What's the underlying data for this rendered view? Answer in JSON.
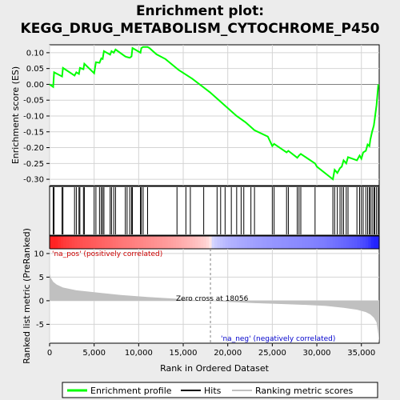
{
  "chart_data": [
    {
      "type": "line",
      "title": "Enrichment plot:",
      "subtitle": "KEGG_DRUG_METABOLISM_CYTOCHROME_P450",
      "ylabel": "Enrichment score (ES)",
      "ylim": [
        -0.32,
        0.125
      ],
      "xlim": [
        0,
        37000
      ],
      "yticks": [
        0.1,
        0.05,
        0.0,
        -0.05,
        -0.1,
        -0.15,
        -0.2,
        -0.25,
        -0.3
      ],
      "ytick_labels": [
        "0.10",
        "0.05",
        "0.00",
        "-0.05",
        "-0.10",
        "-0.15",
        "-0.20",
        "-0.25",
        "-0.30"
      ],
      "grid": true,
      "series": [
        {
          "name": "Enrichment profile",
          "color": "#00ff00",
          "points": [
            [
              0,
              0.0
            ],
            [
              400,
              -0.008
            ],
            [
              500,
              0.038
            ],
            [
              1400,
              0.025
            ],
            [
              1500,
              0.052
            ],
            [
              2800,
              0.028
            ],
            [
              3000,
              0.038
            ],
            [
              3300,
              0.033
            ],
            [
              3400,
              0.052
            ],
            [
              3800,
              0.048
            ],
            [
              3900,
              0.065
            ],
            [
              5000,
              0.035
            ],
            [
              5200,
              0.07
            ],
            [
              5600,
              0.068
            ],
            [
              5800,
              0.082
            ],
            [
              5950,
              0.08
            ],
            [
              6100,
              0.105
            ],
            [
              6800,
              0.094
            ],
            [
              6950,
              0.105
            ],
            [
              7200,
              0.1
            ],
            [
              7400,
              0.11
            ],
            [
              8500,
              0.088
            ],
            [
              8700,
              0.086
            ],
            [
              9000,
              0.084
            ],
            [
              9200,
              0.088
            ],
            [
              9300,
              0.115
            ],
            [
              10200,
              0.1
            ],
            [
              10300,
              0.115
            ],
            [
              10500,
              0.118
            ],
            [
              11000,
              0.118
            ],
            [
              11200,
              0.115
            ],
            [
              12000,
              0.095
            ],
            [
              13000,
              0.08
            ],
            [
              14500,
              0.045
            ],
            [
              16000,
              0.018
            ],
            [
              18000,
              -0.025
            ],
            [
              20000,
              -0.075
            ],
            [
              21000,
              -0.1
            ],
            [
              22000,
              -0.12
            ],
            [
              23000,
              -0.145
            ],
            [
              24500,
              -0.165
            ],
            [
              25000,
              -0.195
            ],
            [
              25200,
              -0.188
            ],
            [
              26600,
              -0.215
            ],
            [
              26800,
              -0.21
            ],
            [
              27800,
              -0.232
            ],
            [
              28000,
              -0.225
            ],
            [
              28200,
              -0.22
            ],
            [
              29800,
              -0.25
            ],
            [
              30000,
              -0.26
            ],
            [
              31800,
              -0.3
            ],
            [
              32000,
              -0.27
            ],
            [
              32300,
              -0.28
            ],
            [
              32600,
              -0.265
            ],
            [
              32800,
              -0.26
            ],
            [
              33000,
              -0.24
            ],
            [
              33300,
              -0.25
            ],
            [
              33500,
              -0.23
            ],
            [
              34500,
              -0.24
            ],
            [
              34800,
              -0.225
            ],
            [
              35000,
              -0.235
            ],
            [
              35200,
              -0.215
            ],
            [
              35500,
              -0.21
            ],
            [
              35700,
              -0.19
            ],
            [
              35900,
              -0.195
            ],
            [
              36000,
              -0.175
            ],
            [
              36200,
              -0.15
            ],
            [
              36400,
              -0.13
            ],
            [
              36500,
              -0.11
            ],
            [
              36700,
              -0.065
            ],
            [
              36900,
              0.0
            ]
          ]
        }
      ]
    },
    {
      "type": "barcode",
      "name": "Hits",
      "xlim": [
        0,
        37000
      ],
      "hits": [
        400,
        500,
        1400,
        1500,
        2800,
        3000,
        3300,
        3400,
        3800,
        3900,
        5000,
        5200,
        5600,
        5800,
        5950,
        6100,
        6800,
        6950,
        7200,
        7400,
        8500,
        8700,
        9000,
        9200,
        9300,
        10200,
        10300,
        10500,
        11000,
        14300,
        15300,
        15800,
        17300,
        18800,
        19200,
        19700,
        20400,
        21000,
        21500,
        21800,
        22600,
        23000,
        25000,
        25200,
        26600,
        26800,
        27800,
        28000,
        28200,
        29800,
        31800,
        32000,
        32300,
        32600,
        32800,
        33000,
        33300,
        33500,
        34500,
        34800,
        35000,
        35200,
        35500,
        35700,
        35900,
        36000,
        36200,
        36400,
        36500,
        36700,
        36900
      ]
    },
    {
      "type": "area",
      "name": "Ranking metric scores",
      "xlabel": "Rank in Ordered Dataset",
      "ylabel": "Ranked list metric (PreRanked)",
      "xlim": [
        0,
        37000
      ],
      "ylim": [
        -9,
        11
      ],
      "yticks": [
        10,
        5,
        0,
        -5
      ],
      "xticks": [
        0,
        5000,
        10000,
        15000,
        20000,
        25000,
        30000,
        35000
      ],
      "xtick_labels": [
        "0",
        "5,000",
        "10,000",
        "15,000",
        "20,000",
        "25,000",
        "30,000",
        "35,000"
      ],
      "color": "#c0c0c0",
      "points": [
        [
          0,
          5.8
        ],
        [
          150,
          4.8
        ],
        [
          400,
          4.0
        ],
        [
          800,
          3.4
        ],
        [
          1500,
          2.8
        ],
        [
          3000,
          2.2
        ],
        [
          5000,
          1.8
        ],
        [
          8000,
          1.2
        ],
        [
          11000,
          0.8
        ],
        [
          14000,
          0.45
        ],
        [
          16000,
          0.2
        ],
        [
          18056,
          0.0
        ],
        [
          20000,
          -0.25
        ],
        [
          23000,
          -0.5
        ],
        [
          26000,
          -0.7
        ],
        [
          29000,
          -0.9
        ],
        [
          31000,
          -1.1
        ],
        [
          33000,
          -1.5
        ],
        [
          34500,
          -1.9
        ],
        [
          35500,
          -2.4
        ],
        [
          36000,
          -2.9
        ],
        [
          36400,
          -3.6
        ],
        [
          36700,
          -4.6
        ],
        [
          36900,
          -7.0
        ],
        [
          37000,
          -8.9
        ]
      ],
      "zero_cross": 18056,
      "annotations": {
        "zero_cross_label": "Zero cross at 18056",
        "pos_label": "'na_pos' (positively correlated)",
        "neg_label": "'na_neg' (negatively correlated)"
      }
    }
  ],
  "legend": {
    "items": [
      {
        "label": "Enrichment profile",
        "color": "#00ff00"
      },
      {
        "label": "Hits",
        "color": "#000000"
      },
      {
        "label": "Ranking metric scores",
        "color": "#c0c0c0"
      }
    ]
  },
  "colors": {
    "profile": "#00ff00",
    "pos_annotation": "#cc0000",
    "neg_annotation": "#0000cc",
    "heat_pos_strong": "#ff2020",
    "heat_neg_strong": "#2020ff",
    "grid": "#d4d4d4",
    "zero_line": "#808080"
  }
}
